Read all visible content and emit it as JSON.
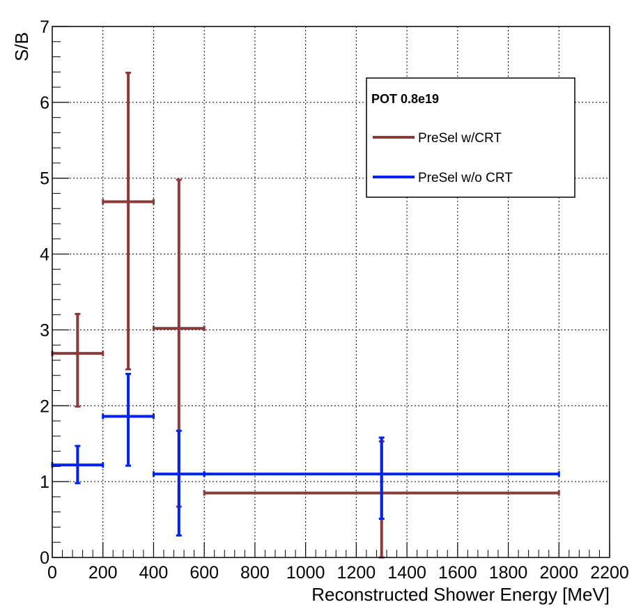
{
  "chart_data": {
    "type": "scatter",
    "title": "",
    "xlabel": "Reconstructed Shower Energy [MeV]",
    "ylabel": "S/B",
    "xlim": [
      0,
      2200
    ],
    "ylim": [
      0,
      7
    ],
    "grid": true,
    "x_ticks": [
      "0",
      "200",
      "400",
      "600",
      "800",
      "1000",
      "1200",
      "1400",
      "1600",
      "1800",
      "2000",
      "2200"
    ],
    "y_ticks": [
      "0",
      "1",
      "2",
      "3",
      "4",
      "5",
      "6",
      "7"
    ],
    "legend": {
      "placement": "top-right",
      "title": "POT 0.8e19",
      "entries": [
        "PreSel w/CRT",
        "PreSel w/o CRT"
      ]
    },
    "series": [
      {
        "name": "PreSel w/CRT",
        "color": "#8b3a3a",
        "points": [
          {
            "x": 100,
            "xlow": 0,
            "xhigh": 200,
            "y": 2.69,
            "ylow": 1.99,
            "yhigh": 3.21
          },
          {
            "x": 300,
            "xlow": 200,
            "xhigh": 400,
            "y": 4.69,
            "ylow": 2.48,
            "yhigh": 6.39
          },
          {
            "x": 500,
            "xlow": 400,
            "xhigh": 600,
            "y": 3.02,
            "ylow": 0.67,
            "yhigh": 4.98
          },
          {
            "x": 1300,
            "xlow": 600,
            "xhigh": 2000,
            "y": 0.85,
            "ylow": 0.0,
            "yhigh": 1.53
          }
        ]
      },
      {
        "name": "PreSel w/o CRT",
        "color": "#0022ee",
        "points": [
          {
            "x": 100,
            "xlow": 0,
            "xhigh": 200,
            "y": 1.22,
            "ylow": 0.98,
            "yhigh": 1.47
          },
          {
            "x": 300,
            "xlow": 200,
            "xhigh": 400,
            "y": 1.86,
            "ylow": 1.21,
            "yhigh": 2.42
          },
          {
            "x": 500,
            "xlow": 400,
            "xhigh": 600,
            "y": 1.1,
            "ylow": 0.29,
            "yhigh": 1.67
          },
          {
            "x": 1300,
            "xlow": 600,
            "xhigh": 2000,
            "y": 1.1,
            "ylow": 0.51,
            "yhigh": 1.58
          }
        ]
      }
    ]
  }
}
